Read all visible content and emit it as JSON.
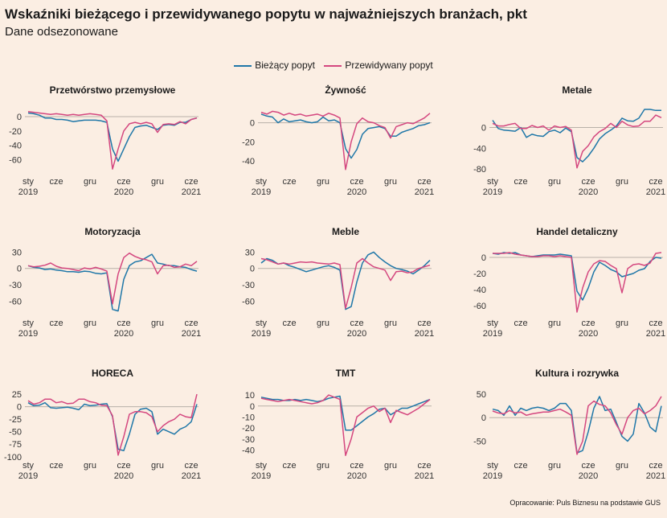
{
  "title": "Wskaźniki bieżącego i przewidywanego popytu w najważniejszych branżach, pkt",
  "subtitle": "Dane odsezonowane",
  "source": "Opracowanie: Puls Biznesu na podstawie GUS",
  "colors": {
    "background": "#fbeee3",
    "current": "#1f77a8",
    "expected": "#d4477f",
    "zero_line": "#b8b0a8"
  },
  "legend": [
    {
      "name": "Bieżący popyt",
      "color": "#1f77a8"
    },
    {
      "name": "Przewidywany popyt",
      "color": "#d4477f"
    }
  ],
  "chart_data": [
    {
      "type": "line",
      "title": "Przetwórstwo przemysłowe",
      "x_ticks": [
        {
          "label": "sty",
          "year": "2019",
          "i": 0
        },
        {
          "label": "cze",
          "i": 5
        },
        {
          "label": "gru",
          "i": 11
        },
        {
          "label": "cze",
          "year": "2020",
          "i": 17
        },
        {
          "label": "gru",
          "i": 23
        },
        {
          "label": "cze",
          "year": "2021",
          "i": 29
        }
      ],
      "ylim": [
        -75,
        10
      ],
      "yticks": [
        0,
        -20,
        -40,
        -60
      ],
      "series": [
        {
          "name": "Bieżący popyt",
          "values": [
            5,
            4,
            2,
            -2,
            -2,
            -4,
            -4,
            -5,
            -7,
            -6,
            -5,
            -5,
            -5,
            -6,
            -8,
            -45,
            -62,
            -45,
            -28,
            -15,
            -13,
            -12,
            -15,
            -18,
            -12,
            -11,
            -12,
            -8,
            -8,
            -4,
            -2
          ]
        },
        {
          "name": "Przewidywany popyt",
          "values": [
            7,
            6,
            5,
            4,
            3,
            4,
            3,
            2,
            3,
            2,
            3,
            4,
            3,
            2,
            -6,
            -73,
            -45,
            -20,
            -10,
            -8,
            -10,
            -8,
            -10,
            -22,
            -11,
            -10,
            -11,
            -7,
            -10,
            -4,
            -2
          ]
        }
      ]
    },
    {
      "type": "line",
      "title": "Żywność",
      "x_ticks": [
        {
          "label": "sty",
          "year": "2019",
          "i": 0
        },
        {
          "label": "cze",
          "i": 5
        },
        {
          "label": "gru",
          "i": 11
        },
        {
          "label": "cze",
          "year": "2020",
          "i": 17
        },
        {
          "label": "gru",
          "i": 23
        },
        {
          "label": "cze",
          "year": "2021",
          "i": 29
        }
      ],
      "ylim": [
        -50,
        14
      ],
      "yticks": [
        0,
        -20,
        -40
      ],
      "series": [
        {
          "name": "Bieżący popyt",
          "values": [
            9,
            7,
            6,
            0,
            4,
            1,
            2,
            3,
            1,
            0,
            1,
            6,
            2,
            3,
            0,
            -27,
            -37,
            -28,
            -12,
            -6,
            -5,
            -4,
            -6,
            -14,
            -14,
            -10,
            -8,
            -6,
            -3,
            -2,
            0
          ]
        },
        {
          "name": "Przewidywany popyt",
          "values": [
            11,
            9,
            12,
            11,
            8,
            10,
            8,
            9,
            7,
            8,
            9,
            7,
            10,
            8,
            5,
            -49,
            -20,
            -1,
            5,
            1,
            0,
            -3,
            -5,
            -16,
            -4,
            -2,
            0,
            -1,
            2,
            5,
            10
          ]
        }
      ]
    },
    {
      "type": "line",
      "title": "Metale",
      "x_ticks": [
        {
          "label": "sty",
          "year": "2019",
          "i": 0
        },
        {
          "label": "cze",
          "i": 5
        },
        {
          "label": "gru",
          "i": 11
        },
        {
          "label": "cze",
          "year": "2020",
          "i": 17
        },
        {
          "label": "gru",
          "i": 23
        },
        {
          "label": "cze",
          "year": "2021",
          "i": 29
        }
      ],
      "ylim": [
        -83,
        35
      ],
      "yticks": [
        0,
        -40,
        -80
      ],
      "series": [
        {
          "name": "Bieżący popyt",
          "values": [
            14,
            -2,
            -5,
            -6,
            -7,
            0,
            -19,
            -13,
            -16,
            -17,
            -8,
            -5,
            -10,
            -1,
            -8,
            -58,
            -66,
            -55,
            -40,
            -22,
            -12,
            -5,
            3,
            18,
            13,
            12,
            18,
            35,
            35,
            33,
            33
          ]
        },
        {
          "name": "Przewidywany popyt",
          "values": [
            8,
            3,
            3,
            6,
            8,
            -2,
            -2,
            4,
            0,
            3,
            -5,
            3,
            0,
            2,
            -5,
            -78,
            -46,
            -35,
            -18,
            -8,
            -2,
            8,
            0,
            12,
            5,
            2,
            3,
            12,
            12,
            24,
            19
          ]
        }
      ]
    },
    {
      "type": "line",
      "title": "Motoryzacja",
      "x_ticks": [
        {
          "label": "sty",
          "year": "2019",
          "i": 0
        },
        {
          "label": "cze",
          "i": 5
        },
        {
          "label": "gru",
          "i": 11
        },
        {
          "label": "cze",
          "year": "2020",
          "i": 17
        },
        {
          "label": "gru",
          "i": 23
        },
        {
          "label": "cze",
          "year": "2021",
          "i": 29
        }
      ],
      "ylim": [
        -80,
        35
      ],
      "yticks": [
        30,
        0,
        -30,
        -60
      ],
      "series": [
        {
          "name": "Bieżący popyt",
          "values": [
            5,
            2,
            1,
            -2,
            -1,
            -3,
            -4,
            -6,
            -6,
            -7,
            -5,
            -6,
            -9,
            -10,
            -8,
            -75,
            -78,
            -20,
            5,
            12,
            14,
            20,
            26,
            10,
            8,
            5,
            5,
            3,
            2,
            -2,
            -5
          ]
        },
        {
          "name": "Przewidywany popyt",
          "values": [
            5,
            3,
            4,
            6,
            10,
            4,
            1,
            0,
            -2,
            -4,
            1,
            -1,
            2,
            -1,
            -5,
            -65,
            -10,
            20,
            28,
            22,
            18,
            16,
            12,
            -10,
            5,
            6,
            2,
            3,
            8,
            5,
            13
          ]
        }
      ]
    },
    {
      "type": "line",
      "title": "Meble",
      "x_ticks": [
        {
          "label": "sty",
          "year": "2019",
          "i": 0
        },
        {
          "label": "cze",
          "i": 5
        },
        {
          "label": "gru",
          "i": 11
        },
        {
          "label": "cze",
          "year": "2020",
          "i": 17
        },
        {
          "label": "gru",
          "i": 23
        },
        {
          "label": "cze",
          "year": "2021",
          "i": 29
        }
      ],
      "ylim": [
        -80,
        35
      ],
      "yticks": [
        30,
        0,
        -30,
        -60
      ],
      "series": [
        {
          "name": "Bieżący popyt",
          "values": [
            10,
            18,
            15,
            8,
            10,
            5,
            2,
            -2,
            -6,
            -3,
            0,
            3,
            5,
            2,
            -3,
            -75,
            -70,
            -25,
            10,
            25,
            30,
            20,
            12,
            5,
            0,
            -2,
            -5,
            -10,
            -3,
            5,
            15
          ]
        },
        {
          "name": "Przewidywany popyt",
          "values": [
            18,
            16,
            12,
            8,
            10,
            8,
            10,
            12,
            11,
            12,
            10,
            9,
            8,
            10,
            7,
            -73,
            -35,
            10,
            18,
            10,
            3,
            0,
            -3,
            -22,
            -6,
            -5,
            -8,
            -6,
            0,
            3,
            6
          ]
        }
      ]
    },
    {
      "type": "line",
      "title": "Handel detaliczny",
      "x_ticks": [
        {
          "label": "sty",
          "year": "2019",
          "i": 0
        },
        {
          "label": "cze",
          "i": 5
        },
        {
          "label": "gru",
          "i": 11
        },
        {
          "label": "cze",
          "year": "2020",
          "i": 17
        },
        {
          "label": "gru",
          "i": 23
        },
        {
          "label": "cze",
          "year": "2021",
          "i": 29
        }
      ],
      "ylim": [
        -68,
        10
      ],
      "yticks": [
        0,
        -20,
        -40,
        -60
      ],
      "series": [
        {
          "name": "Bieżący popyt",
          "values": [
            5,
            4,
            6,
            5,
            6,
            3,
            2,
            1,
            2,
            3,
            3,
            3,
            4,
            3,
            2,
            -42,
            -53,
            -38,
            -18,
            -6,
            -10,
            -15,
            -18,
            -24,
            -22,
            -20,
            -16,
            -14,
            -5,
            0,
            -1
          ]
        },
        {
          "name": "Przewidywany popyt",
          "values": [
            5,
            5,
            5,
            6,
            4,
            3,
            2,
            1,
            1,
            2,
            2,
            1,
            2,
            1,
            0,
            -68,
            -38,
            -18,
            -8,
            -4,
            -5,
            -10,
            -14,
            -44,
            -14,
            -9,
            -8,
            -10,
            -7,
            5,
            6
          ]
        }
      ]
    },
    {
      "type": "line",
      "title": "HORECA",
      "x_ticks": [
        {
          "label": "sty",
          "year": "2019",
          "i": 0
        },
        {
          "label": "cze",
          "i": 5
        },
        {
          "label": "gru",
          "i": 11
        },
        {
          "label": "cze",
          "year": "2020",
          "i": 17
        },
        {
          "label": "gru",
          "i": 23
        },
        {
          "label": "cze",
          "year": "2021",
          "i": 29
        }
      ],
      "ylim": [
        -102,
        30
      ],
      "yticks": [
        25,
        0,
        -25,
        -50,
        -75,
        -100
      ],
      "series": [
        {
          "name": "Bieżący popyt",
          "values": [
            8,
            2,
            3,
            8,
            -2,
            -3,
            -2,
            -1,
            -3,
            -6,
            5,
            2,
            3,
            5,
            6,
            -20,
            -85,
            -88,
            -55,
            -15,
            -5,
            -3,
            -10,
            -55,
            -45,
            -50,
            -55,
            -45,
            -40,
            -30,
            5
          ]
        },
        {
          "name": "Przewidywany popyt",
          "values": [
            12,
            5,
            8,
            15,
            15,
            8,
            10,
            6,
            7,
            15,
            15,
            10,
            8,
            3,
            2,
            -18,
            -97,
            -60,
            -15,
            -10,
            -10,
            -12,
            -20,
            -50,
            -38,
            -30,
            -25,
            -15,
            -20,
            -22,
            25
          ]
        }
      ]
    },
    {
      "type": "line",
      "title": "TMT",
      "x_ticks": [
        {
          "label": "sty",
          "year": "2019",
          "i": 0
        },
        {
          "label": "cze",
          "i": 5
        },
        {
          "label": "gru",
          "i": 11
        },
        {
          "label": "cze",
          "year": "2020",
          "i": 17
        },
        {
          "label": "gru",
          "i": 23
        },
        {
          "label": "cze",
          "year": "2021",
          "i": 29
        }
      ],
      "ylim": [
        -47,
        13
      ],
      "yticks": [
        10,
        0,
        -10,
        -20,
        -30,
        -40
      ],
      "series": [
        {
          "name": "Bieżący popyt",
          "values": [
            8,
            7,
            6,
            6,
            5,
            5,
            6,
            5,
            6,
            5,
            4,
            5,
            7,
            8,
            9,
            -22,
            -22,
            -18,
            -14,
            -10,
            -7,
            -3,
            -2,
            -8,
            -5,
            -2,
            -2,
            0,
            2,
            4,
            6
          ]
        },
        {
          "name": "Przewidywany popyt",
          "values": [
            7,
            6,
            5,
            4,
            5,
            6,
            5,
            4,
            3,
            2,
            3,
            5,
            10,
            8,
            6,
            -45,
            -30,
            -10,
            -6,
            -2,
            0,
            -5,
            -2,
            -15,
            -4,
            -6,
            -8,
            -5,
            -2,
            2,
            6
          ]
        }
      ]
    },
    {
      "type": "line",
      "title": "Kultura i rozrywka",
      "x_ticks": [
        {
          "label": "sty",
          "year": "2019",
          "i": 0
        },
        {
          "label": "cze",
          "i": 5
        },
        {
          "label": "gru",
          "i": 11
        },
        {
          "label": "cze",
          "year": "2020",
          "i": 17
        },
        {
          "label": "gru",
          "i": 23
        },
        {
          "label": "cze",
          "year": "2021",
          "i": 29
        }
      ],
      "ylim": [
        -85,
        55
      ],
      "yticks": [
        50,
        0,
        -50
      ],
      "series": [
        {
          "name": "Bieżący popyt",
          "values": [
            18,
            15,
            5,
            25,
            5,
            20,
            15,
            20,
            22,
            20,
            15,
            20,
            30,
            30,
            15,
            -75,
            -70,
            -30,
            20,
            45,
            15,
            18,
            -10,
            -40,
            -50,
            -35,
            30,
            10,
            -20,
            -30,
            25
          ]
        },
        {
          "name": "Przewidywany popyt",
          "values": [
            14,
            10,
            8,
            15,
            10,
            12,
            5,
            8,
            10,
            12,
            12,
            15,
            18,
            12,
            5,
            -78,
            -50,
            25,
            35,
            28,
            25,
            10,
            -15,
            -35,
            0,
            15,
            20,
            8,
            15,
            25,
            45
          ]
        }
      ]
    }
  ]
}
